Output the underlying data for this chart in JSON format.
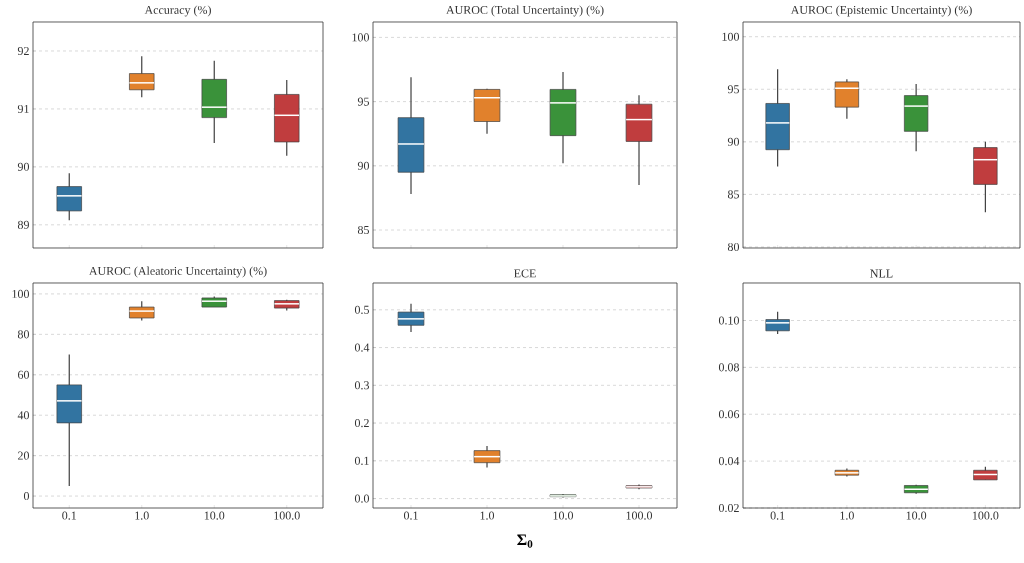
{
  "chart_data": [
    {
      "type": "box",
      "title": "Accuracy (%)",
      "categories": [
        "0.1",
        "1.0",
        "10.0",
        "100.0"
      ],
      "colors": [
        "#3274a1",
        "#e1812c",
        "#3a923a",
        "#c03d3e"
      ],
      "ylim": [
        88.6,
        92.5
      ],
      "yticks": [
        89,
        90,
        91,
        92
      ],
      "grid": "y",
      "tick_labels": "y",
      "boxes": [
        {
          "low": 89.08,
          "q1": 89.24,
          "median": 89.5,
          "q3": 89.66,
          "high": 89.89
        },
        {
          "low": 91.2,
          "q1": 91.33,
          "median": 91.45,
          "q3": 91.61,
          "high": 91.91
        },
        {
          "low": 90.41,
          "q1": 90.85,
          "median": 91.03,
          "q3": 91.51,
          "high": 91.83
        },
        {
          "low": 90.19,
          "q1": 90.43,
          "median": 90.89,
          "q3": 91.25,
          "high": 91.5
        }
      ]
    },
    {
      "type": "box",
      "title": "AUROC (Total Uncertainty) (%)",
      "categories": [
        "0.1",
        "1.0",
        "10.0",
        "100.0"
      ],
      "colors": [
        "#3274a1",
        "#e1812c",
        "#3a923a",
        "#c03d3e"
      ],
      "ylim": [
        83.6,
        101.2
      ],
      "yticks": [
        85,
        90,
        95,
        100
      ],
      "grid": "y",
      "tick_labels": "y",
      "boxes": [
        {
          "low": 87.8,
          "q1": 89.5,
          "median": 91.7,
          "q3": 93.75,
          "high": 96.9
        },
        {
          "low": 92.5,
          "q1": 93.45,
          "median": 95.3,
          "q3": 95.95,
          "high": 96.0
        },
        {
          "low": 90.2,
          "q1": 92.35,
          "median": 94.9,
          "q3": 95.95,
          "high": 97.3
        },
        {
          "low": 88.5,
          "q1": 91.9,
          "median": 93.6,
          "q3": 94.8,
          "high": 95.5
        }
      ]
    },
    {
      "type": "box",
      "title": "AUROC (Epistemic Uncertainty) (%)",
      "categories": [
        "0.1",
        "1.0",
        "10.0",
        "100.0"
      ],
      "colors": [
        "#3274a1",
        "#e1812c",
        "#3a923a",
        "#c03d3e"
      ],
      "ylim": [
        79.9,
        101.4
      ],
      "yticks": [
        80,
        85,
        90,
        95,
        100
      ],
      "grid": "y",
      "tick_labels": "y",
      "boxes": [
        {
          "low": 87.65,
          "q1": 89.25,
          "median": 91.8,
          "q3": 93.65,
          "high": 96.9
        },
        {
          "low": 92.2,
          "q1": 93.3,
          "median": 95.1,
          "q3": 95.7,
          "high": 95.95
        },
        {
          "low": 89.1,
          "q1": 91.0,
          "median": 93.4,
          "q3": 94.4,
          "high": 95.5
        },
        {
          "low": 83.3,
          "q1": 85.95,
          "median": 88.3,
          "q3": 89.45,
          "high": 90.0
        }
      ]
    },
    {
      "type": "box",
      "title": "AUROC (Aleatoric Uncertainty) (%)",
      "categories": [
        "0.1",
        "1.0",
        "10.0",
        "100.0"
      ],
      "colors": [
        "#3274a1",
        "#e1812c",
        "#3a923a",
        "#c03d3e"
      ],
      "ylim": [
        -5.9,
        105.4
      ],
      "yticks": [
        0,
        20,
        40,
        60,
        80,
        100
      ],
      "grid": "y",
      "boxes": [
        {
          "low": 5,
          "q1": 36.2,
          "median": 47.1,
          "q3": 55,
          "high": 70
        },
        {
          "low": 86.9,
          "q1": 88.1,
          "median": 91.5,
          "q3": 93.5,
          "high": 96.4
        },
        {
          "low": 93.5,
          "q1": 93.5,
          "median": 96.4,
          "q3": 98.0,
          "high": 98.7
        },
        {
          "low": 91.8,
          "q1": 93.0,
          "median": 95.1,
          "q3": 96.7,
          "high": 97.1
        }
      ]
    },
    {
      "type": "box",
      "title": "ECE",
      "xlabel": "Σ$_{0}$",
      "categories": [
        "0.1",
        "1.0",
        "10.0",
        "100.0"
      ],
      "colors": [
        "#3274a1",
        "#e1812c",
        "#3a923a",
        "#c03d3e"
      ],
      "ylim": [
        -0.025,
        0.571
      ],
      "yticks": [
        {
          "value": 0,
          "label": "0.0"
        },
        {
          "value": 0.1,
          "label": "0.1"
        },
        {
          "value": 0.2,
          "label": "0.2"
        },
        {
          "value": 0.3,
          "label": "0.3"
        },
        {
          "value": 0.4,
          "label": "0.4"
        },
        {
          "value": 0.5,
          "label": "0.5"
        }
      ],
      "grid": "y",
      "boxes": [
        {
          "low": 0.441,
          "q1": 0.459,
          "median": 0.476,
          "q3": 0.494,
          "high": 0.516
        },
        {
          "low": 0.082,
          "q1": 0.095,
          "median": 0.111,
          "q3": 0.127,
          "high": 0.139
        },
        {
          "low": 0.003,
          "q1": 0.005,
          "median": 0.007,
          "q3": 0.01,
          "high": 0.012
        },
        {
          "low": 0.025,
          "q1": 0.028,
          "median": 0.031,
          "q3": 0.034,
          "high": 0.037
        }
      ]
    },
    {
      "type": "box",
      "title": "NLL",
      "categories": [
        "0.1",
        "1.0",
        "10.0",
        "100.0"
      ],
      "colors": [
        "#3274a1",
        "#e1812c",
        "#3a923a",
        "#c03d3e"
      ],
      "ylim": [
        0.02,
        0.116
      ],
      "yticks": [
        {
          "value": 0.02,
          "label": "0.02"
        },
        {
          "value": 0.04,
          "label": "0.04"
        },
        {
          "value": 0.06,
          "label": "0.06"
        },
        {
          "value": 0.08,
          "label": "0.08"
        },
        {
          "value": 0.1,
          "label": "0.10"
        }
      ],
      "grid": "y",
      "boxes": [
        {
          "low": 0.0942,
          "q1": 0.0956,
          "median": 0.099,
          "q3": 0.1004,
          "high": 0.1037
        },
        {
          "low": 0.0334,
          "q1": 0.034,
          "median": 0.035,
          "q3": 0.0361,
          "high": 0.0368
        },
        {
          "low": 0.0261,
          "q1": 0.0265,
          "median": 0.028,
          "q3": 0.0296,
          "high": 0.0299
        },
        {
          "low": 0.032,
          "q1": 0.032,
          "median": 0.0343,
          "q3": 0.0361,
          "high": 0.0376
        }
      ]
    }
  ]
}
